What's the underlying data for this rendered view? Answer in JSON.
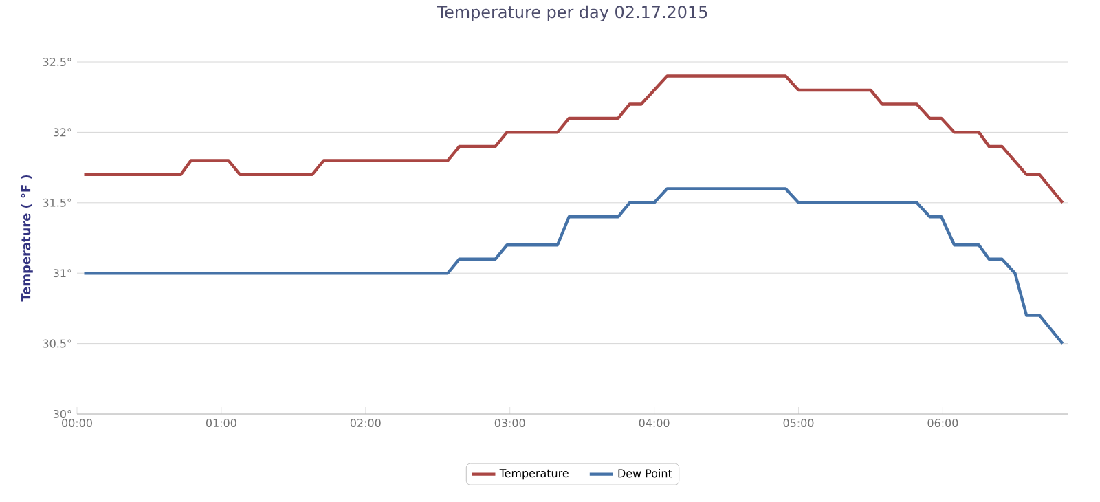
{
  "chart_data": {
    "type": "line",
    "title": "Temperature per day 02.17.2015",
    "ylabel": "Temperature ( °F )",
    "xlim": [
      0,
      6.87
    ],
    "ylim": [
      30,
      32.5
    ],
    "xticks": [
      {
        "value": 0,
        "label": "00:00"
      },
      {
        "value": 1,
        "label": "01:00"
      },
      {
        "value": 2,
        "label": "02:00"
      },
      {
        "value": 3,
        "label": "03:00"
      },
      {
        "value": 4,
        "label": "04:00"
      },
      {
        "value": 5,
        "label": "05:00"
      },
      {
        "value": 6,
        "label": "06:00"
      }
    ],
    "yticks": [
      {
        "value": 30,
        "label": "30°"
      },
      {
        "value": 30.5,
        "label": "30.5°"
      },
      {
        "value": 31,
        "label": "31°"
      },
      {
        "value": 31.5,
        "label": "31.5°"
      },
      {
        "value": 32,
        "label": "32°"
      },
      {
        "value": 32.5,
        "label": "32.5°"
      }
    ],
    "grid": "y",
    "legend": "bottom",
    "marker": "none",
    "line_style": "solid",
    "series": [
      {
        "name": "Temperature",
        "color": "#aa4643",
        "x": [
          0.05,
          0.72,
          0.79,
          1.05,
          1.13,
          1.63,
          1.71,
          2.57,
          2.65,
          2.9,
          2.98,
          3.33,
          3.41,
          3.75,
          3.83,
          3.91,
          4.09,
          4.91,
          5.0,
          5.5,
          5.58,
          5.82,
          5.91,
          5.99,
          6.08,
          6.25,
          6.32,
          6.41,
          6.58,
          6.67,
          6.83
        ],
        "values": [
          31.7,
          31.7,
          31.8,
          31.8,
          31.7,
          31.7,
          31.8,
          31.8,
          31.9,
          31.9,
          32.0,
          32.0,
          32.1,
          32.1,
          32.2,
          32.2,
          32.4,
          32.4,
          32.3,
          32.3,
          32.2,
          32.2,
          32.1,
          32.1,
          32.0,
          32.0,
          31.9,
          31.9,
          31.7,
          31.7,
          31.5
        ]
      },
      {
        "name": "Dew Point",
        "color": "#4572a7",
        "x": [
          0.05,
          2.57,
          2.65,
          2.9,
          2.98,
          3.33,
          3.41,
          3.75,
          3.83,
          4.0,
          4.09,
          4.91,
          5.0,
          5.82,
          5.91,
          5.99,
          6.08,
          6.25,
          6.32,
          6.41,
          6.5,
          6.58,
          6.67,
          6.83
        ],
        "values": [
          31.0,
          31.0,
          31.1,
          31.1,
          31.2,
          31.2,
          31.4,
          31.4,
          31.5,
          31.5,
          31.6,
          31.6,
          31.5,
          31.5,
          31.4,
          31.4,
          31.2,
          31.2,
          31.1,
          31.1,
          31.0,
          30.7,
          30.7,
          30.5
        ]
      }
    ]
  }
}
